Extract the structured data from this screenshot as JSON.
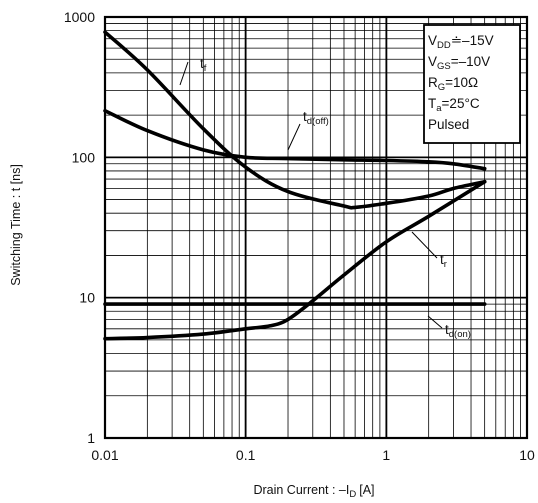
{
  "chart_data": {
    "type": "line",
    "title": "",
    "xlabel": "Drain Current : –I",
    "xlabel_sub": "D",
    "xlabel_unit": "[A]",
    "ylabel": "Switching Time : t [ns]",
    "x_scale": "log",
    "y_scale": "log",
    "xlim": [
      0.01,
      10
    ],
    "ylim": [
      1,
      1000
    ],
    "grid": true,
    "x_ticks": [
      {
        "value": 0.01,
        "label": "0.01"
      },
      {
        "value": 0.1,
        "label": "0.1"
      },
      {
        "value": 1,
        "label": "1"
      },
      {
        "value": 10,
        "label": "10"
      }
    ],
    "y_ticks": [
      {
        "value": 1,
        "label": "1"
      },
      {
        "value": 10,
        "label": "10"
      },
      {
        "value": 100,
        "label": "100"
      },
      {
        "value": 1000,
        "label": "1000"
      }
    ],
    "series": [
      {
        "name": "tf",
        "label_main": "t",
        "label_sub": "f",
        "x": [
          0.01,
          0.02,
          0.05,
          0.1,
          0.2,
          0.5,
          0.6,
          1,
          2,
          3,
          5
        ],
        "y": [
          780,
          420,
          160,
          85,
          57,
          45,
          44,
          47,
          53,
          60,
          67
        ]
      },
      {
        "name": "td(off)",
        "label_main": "t",
        "label_sub": "d(off)",
        "x": [
          0.01,
          0.02,
          0.05,
          0.1,
          0.2,
          0.5,
          1,
          2,
          3,
          5
        ],
        "y": [
          215,
          155,
          113,
          100,
          98,
          96,
          95,
          93,
          90,
          83
        ]
      },
      {
        "name": "tr",
        "label_main": "t",
        "label_sub": "r",
        "x": [
          0.01,
          0.02,
          0.05,
          0.1,
          0.15,
          0.2,
          0.3,
          0.5,
          1,
          2,
          5
        ],
        "y": [
          5.1,
          5.2,
          5.5,
          6.0,
          6.3,
          7.0,
          9.5,
          14.5,
          25,
          38,
          67
        ]
      },
      {
        "name": "td(on)",
        "label_main": "t",
        "label_sub": "d(on)",
        "x": [
          0.01,
          5
        ],
        "y": [
          9.0,
          9.0
        ]
      }
    ],
    "annotations": {
      "conditions": [
        {
          "main": "V",
          "sub": "DD",
          "rest": "≐–15V"
        },
        {
          "main": "V",
          "sub": "GS",
          "rest": "=–10V"
        },
        {
          "main": "R",
          "sub": "G",
          "rest": "=10Ω"
        },
        {
          "main": "T",
          "sub": "a",
          "rest": "=25°C"
        },
        {
          "main": "Pulsed",
          "sub": "",
          "rest": ""
        }
      ]
    }
  }
}
